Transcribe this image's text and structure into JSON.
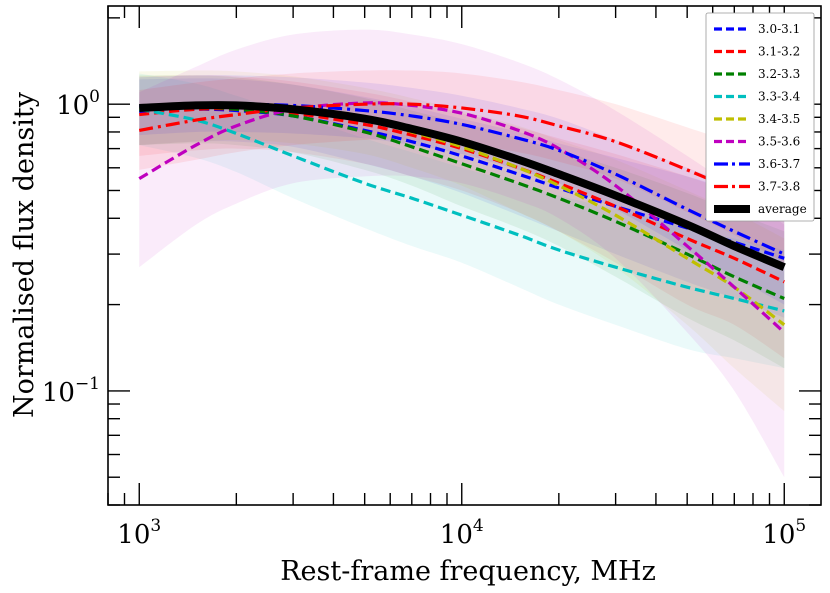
{
  "chart_data": {
    "type": "line",
    "xlabel": "Rest-frame frequency, MHz",
    "ylabel": "Normalised flux density",
    "xscale": "log",
    "yscale": "log",
    "xlim": [
      800,
      130000
    ],
    "ylim": [
      0.04,
      2.2
    ],
    "x_ticks": [
      {
        "value": 1000,
        "base": "10",
        "exp": "3"
      },
      {
        "value": 10000,
        "base": "10",
        "exp": "4"
      },
      {
        "value": 100000,
        "base": "10",
        "exp": "5"
      }
    ],
    "y_ticks": [
      {
        "value": 1.0,
        "base": "10",
        "exp": "0"
      },
      {
        "value": 0.1,
        "base": "10",
        "exp": "−1"
      }
    ],
    "legend_position": "top-right",
    "x": [
      1000,
      1500,
      2000,
      3000,
      5000,
      7000,
      10000,
      15000,
      20000,
      30000,
      50000,
      70000,
      100000
    ],
    "series": [
      {
        "name": "3.0-3.1",
        "color": "#0000ff",
        "dash": "dashed",
        "values": [
          0.94,
          0.96,
          0.95,
          0.91,
          0.81,
          0.74,
          0.66,
          0.57,
          0.51,
          0.44,
          0.37,
          0.33,
          0.29
        ],
        "upper": [
          1.22,
          1.23,
          1.22,
          1.17,
          1.06,
          0.98,
          0.89,
          0.8,
          0.73,
          0.65,
          0.56,
          0.5,
          0.45
        ],
        "lower": [
          0.72,
          0.74,
          0.74,
          0.71,
          0.62,
          0.56,
          0.49,
          0.41,
          0.36,
          0.3,
          0.24,
          0.21,
          0.18
        ]
      },
      {
        "name": "3.1-3.2",
        "color": "#ff0000",
        "dash": "dashed",
        "values": [
          0.92,
          0.96,
          0.96,
          0.93,
          0.85,
          0.78,
          0.7,
          0.6,
          0.53,
          0.44,
          0.34,
          0.29,
          0.24
        ],
        "upper": [
          1.25,
          1.26,
          1.25,
          1.2,
          1.1,
          1.02,
          0.93,
          0.83,
          0.76,
          0.67,
          0.56,
          0.49,
          0.42
        ],
        "lower": [
          0.66,
          0.69,
          0.7,
          0.68,
          0.62,
          0.56,
          0.5,
          0.42,
          0.36,
          0.28,
          0.2,
          0.17,
          0.13
        ]
      },
      {
        "name": "3.2-3.3",
        "color": "#008000",
        "dash": "dashed",
        "values": [
          0.97,
          0.98,
          0.96,
          0.91,
          0.8,
          0.71,
          0.62,
          0.53,
          0.47,
          0.39,
          0.3,
          0.25,
          0.21
        ],
        "upper": [
          1.26,
          1.26,
          1.24,
          1.17,
          1.05,
          0.95,
          0.86,
          0.76,
          0.69,
          0.6,
          0.49,
          0.42,
          0.36
        ],
        "lower": [
          0.72,
          0.73,
          0.72,
          0.68,
          0.59,
          0.52,
          0.44,
          0.37,
          0.32,
          0.25,
          0.18,
          0.15,
          0.12
        ]
      },
      {
        "name": "3.3-3.4",
        "color": "#00bfbf",
        "dash": "dashed",
        "values": [
          0.96,
          0.88,
          0.79,
          0.66,
          0.53,
          0.47,
          0.41,
          0.35,
          0.31,
          0.27,
          0.23,
          0.21,
          0.19
        ],
        "upper": [
          1.28,
          1.18,
          1.07,
          0.92,
          0.76,
          0.68,
          0.6,
          0.53,
          0.48,
          0.43,
          0.37,
          0.34,
          0.31
        ],
        "lower": [
          0.72,
          0.65,
          0.58,
          0.47,
          0.37,
          0.32,
          0.28,
          0.23,
          0.2,
          0.17,
          0.14,
          0.13,
          0.12
        ]
      },
      {
        "name": "3.4-3.5",
        "color": "#bfbf00",
        "dash": "dashed",
        "values": [
          0.97,
          0.99,
          0.99,
          0.96,
          0.88,
          0.8,
          0.71,
          0.6,
          0.52,
          0.41,
          0.29,
          0.23,
          0.17
        ],
        "upper": [
          1.3,
          1.31,
          1.3,
          1.25,
          1.14,
          1.05,
          0.95,
          0.84,
          0.75,
          0.64,
          0.5,
          0.42,
          0.34
        ],
        "lower": [
          0.72,
          0.74,
          0.75,
          0.73,
          0.67,
          0.6,
          0.52,
          0.42,
          0.36,
          0.27,
          0.17,
          0.12,
          0.085
        ]
      },
      {
        "name": "3.5-3.6",
        "color": "#bf00bf",
        "dash": "dashed",
        "values": [
          0.55,
          0.72,
          0.84,
          0.96,
          1.01,
          0.99,
          0.93,
          0.81,
          0.7,
          0.52,
          0.32,
          0.23,
          0.16
        ],
        "upper": [
          1.1,
          1.35,
          1.55,
          1.75,
          1.82,
          1.75,
          1.62,
          1.4,
          1.22,
          0.95,
          0.66,
          0.51,
          0.38
        ],
        "lower": [
          0.27,
          0.38,
          0.45,
          0.53,
          0.56,
          0.56,
          0.53,
          0.46,
          0.4,
          0.29,
          0.16,
          0.1,
          0.05
        ]
      },
      {
        "name": "3.6-3.7",
        "color": "#0000ff",
        "dash": "dashdot",
        "values": [
          0.98,
          1.0,
          1.0,
          0.99,
          0.95,
          0.91,
          0.85,
          0.76,
          0.69,
          0.57,
          0.43,
          0.36,
          0.3
        ],
        "upper": [
          1.24,
          1.26,
          1.26,
          1.24,
          1.19,
          1.14,
          1.07,
          0.97,
          0.89,
          0.75,
          0.6,
          0.52,
          0.45
        ],
        "lower": [
          0.78,
          0.8,
          0.8,
          0.79,
          0.76,
          0.72,
          0.67,
          0.59,
          0.53,
          0.43,
          0.31,
          0.25,
          0.2
        ]
      },
      {
        "name": "3.7-3.8",
        "color": "#ff0000",
        "dash": "dashdot",
        "values": [
          0.81,
          0.88,
          0.92,
          0.97,
          1.0,
          1.0,
          0.97,
          0.91,
          0.84,
          0.74,
          0.59,
          0.5,
          0.41
        ],
        "upper": [
          1.12,
          1.19,
          1.23,
          1.28,
          1.31,
          1.31,
          1.28,
          1.2,
          1.12,
          1.0,
          0.83,
          0.73,
          0.62
        ],
        "lower": [
          0.59,
          0.64,
          0.68,
          0.72,
          0.75,
          0.75,
          0.73,
          0.68,
          0.63,
          0.55,
          0.42,
          0.35,
          0.28
        ]
      },
      {
        "name": "average",
        "color": "#000000",
        "dash": "solid",
        "values": [
          0.97,
          0.99,
          0.99,
          0.96,
          0.89,
          0.82,
          0.74,
          0.64,
          0.57,
          0.48,
          0.38,
          0.32,
          0.27
        ]
      }
    ]
  }
}
